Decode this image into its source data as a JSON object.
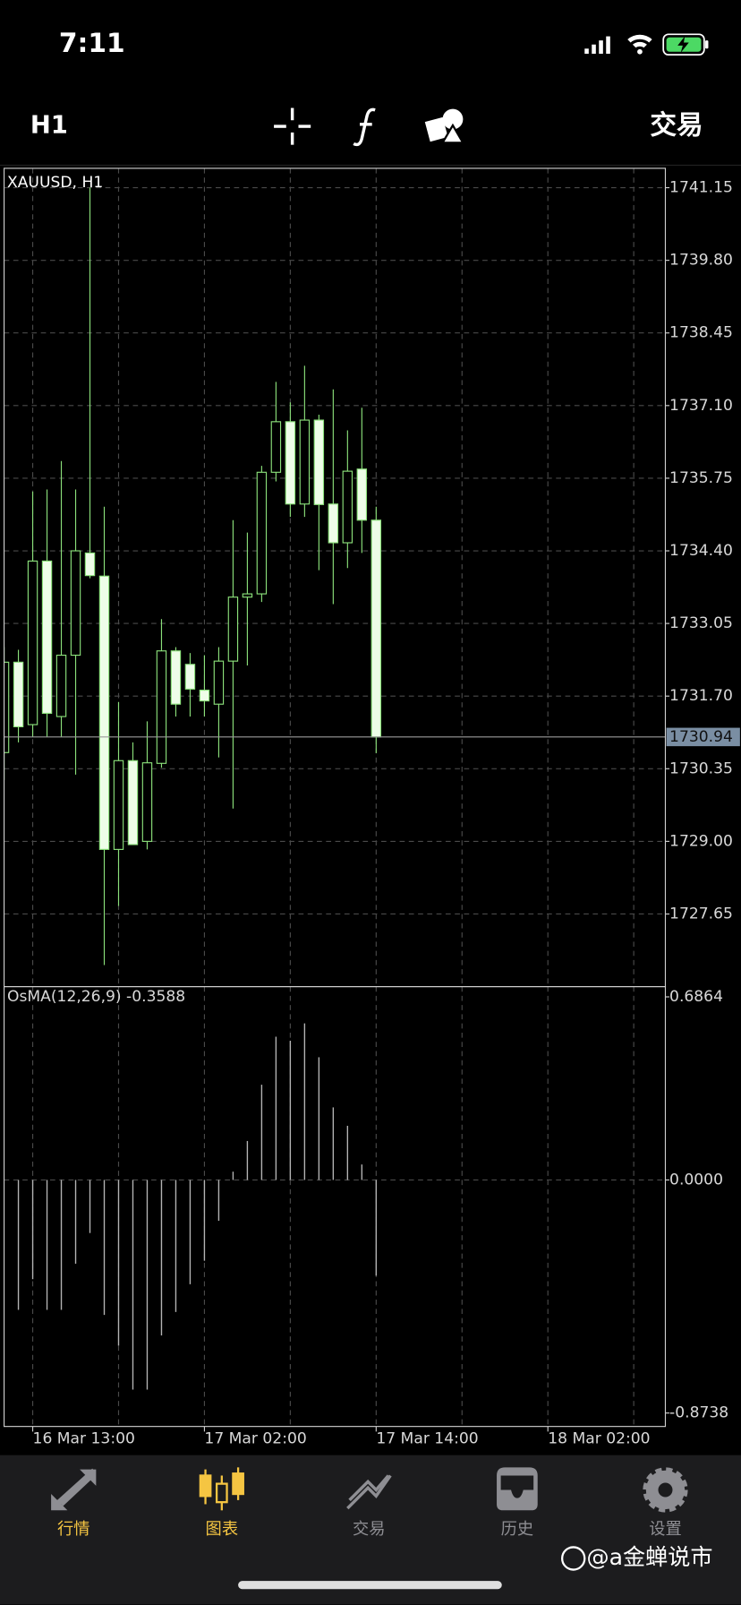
{
  "status_bar": {
    "time": "7:11"
  },
  "toolbar": {
    "timeframe": "H1",
    "trade": "交易"
  },
  "chart_data": [
    {
      "type": "candlestick",
      "title": "XAUUSD, H1",
      "open": [
        1730.65,
        1732.33,
        1731.17,
        1734.21,
        1731.32,
        1732.46,
        1734.36,
        1733.93,
        1728.85,
        1730.5,
        1729.0,
        1730.45,
        1732.54,
        1732.29,
        1731.81,
        1731.55,
        1732.35,
        1733.54,
        1733.6,
        1735.86,
        1736.8,
        1735.27,
        1736.83,
        1735.27,
        1734.55,
        1735.92,
        1734.97
      ],
      "high": [
        1732.61,
        1732.56,
        1735.5,
        1735.54,
        1736.07,
        1735.54,
        1741.15,
        1735.22,
        1731.59,
        1730.84,
        1731.23,
        1733.13,
        1732.61,
        1732.5,
        1732.46,
        1732.61,
        1734.97,
        1734.74,
        1735.98,
        1737.54,
        1737.16,
        1737.84,
        1736.93,
        1737.4,
        1736.64,
        1737.06,
        1735.22
      ],
      "low": [
        1730.14,
        1730.84,
        1730.94,
        1730.94,
        1730.94,
        1730.24,
        1733.89,
        1726.7,
        1727.8,
        1728.94,
        1728.85,
        1730.37,
        1731.32,
        1731.32,
        1731.32,
        1730.56,
        1729.61,
        1732.27,
        1733.45,
        1735.69,
        1735.03,
        1735.03,
        1734.04,
        1733.41,
        1734.08,
        1734.36,
        1730.64
      ],
      "close": [
        1732.33,
        1731.13,
        1734.21,
        1731.38,
        1732.46,
        1734.4,
        1733.94,
        1728.85,
        1730.5,
        1728.94,
        1730.46,
        1732.54,
        1731.55,
        1731.83,
        1731.61,
        1732.35,
        1733.54,
        1733.6,
        1735.86,
        1736.8,
        1735.27,
        1736.83,
        1735.26,
        1734.55,
        1735.88,
        1734.97,
        1730.94
      ],
      "ylim": [
        1726.3,
        1741.51
      ],
      "yticks": [
        1741.15,
        {
          "value": 1739.8,
          "label": "1739.80"
        },
        1738.45,
        {
          "value": 1737.1,
          "label": "1737.10"
        },
        1735.75,
        {
          "value": 1734.4,
          "label": "1734.40"
        },
        1733.05,
        {
          "value": 1731.7,
          "label": "1731.70"
        },
        1730.35,
        {
          "value": 1729,
          "label": "1729.00"
        },
        1727.65
      ],
      "xlim": [
        0,
        46.21
      ],
      "current_price": 1730.94,
      "grid": true,
      "up_color": "#000000",
      "down_color": "#eefde8",
      "line_color": "#8be07a"
    },
    {
      "type": "bar",
      "title": "OsMA(12,26,9) -0.3588",
      "values": [
        null,
        -0.487,
        -0.372,
        -0.487,
        -0.487,
        -0.314,
        -0.199,
        -0.506,
        -0.621,
        -0.786,
        -0.786,
        -0.583,
        -0.495,
        -0.391,
        -0.303,
        -0.153,
        0.031,
        0.146,
        0.357,
        0.537,
        0.522,
        0.587,
        0.46,
        0.272,
        0.203,
        0.058,
        -0.3588
      ],
      "ylim": [
        -0.9242,
        0.7248
      ],
      "yticks": [
        0.6864,
        {
          "value": 0,
          "label": "0.0000"
        },
        -0.8738
      ],
      "xlim": [
        0,
        46.21
      ],
      "xticks": [
        {
          "value": 2,
          "label": "16 Mar 13:00"
        },
        {
          "value": 14,
          "label": "17 Mar 02:00"
        },
        {
          "value": 26,
          "label": "17 Mar 14:00"
        },
        {
          "value": 38,
          "label": "18 Mar 02:00"
        }
      ],
      "grid": true,
      "color": "#b4b4b4"
    }
  ],
  "tab_bar": {
    "tabs": [
      "行情",
      "图表",
      "交易",
      "历史",
      "设置"
    ]
  },
  "watermark": "@a金蝉说市"
}
